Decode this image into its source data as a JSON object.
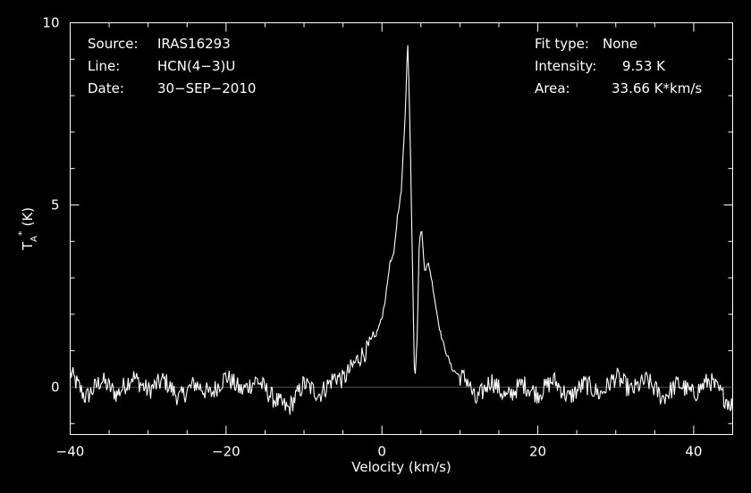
{
  "chart_data": {
    "type": "line",
    "xlabel": "Velocity (km/s)",
    "ylabel": "T",
    "ylabel_sub": "A",
    "ylabel_sup": "*",
    "ylabel_unit": "(K)",
    "xlim": [
      -40,
      45
    ],
    "ylim": [
      -1.3,
      10
    ],
    "x_ticks": [
      -40,
      -20,
      0,
      20,
      40
    ],
    "x_tick_labels": [
      "−40",
      "−20",
      "0",
      "20",
      "40"
    ],
    "y_ticks": [
      0,
      5,
      10
    ],
    "y_tick_labels": [
      "0",
      "5",
      "10"
    ],
    "colors": {
      "background": "#000000",
      "spectrum": "#ffffff",
      "baseline": "#ff0000",
      "frame": "#ffffff"
    },
    "baseline_value": 0,
    "series": [
      {
        "x": [
          -40,
          -38,
          -36,
          -34,
          -32,
          -30,
          -28,
          -26,
          -24,
          -22,
          -20,
          -18,
          -16,
          -14,
          -12,
          -10,
          -8,
          -6,
          -5,
          -4,
          -3,
          -2,
          -1,
          0,
          0.5,
          1,
          1.5,
          2,
          2.5,
          3,
          3.3,
          3.6,
          3.9,
          4.2,
          4.5,
          4.8,
          5.1,
          5.5,
          6,
          6.5,
          7,
          7.5,
          8,
          8.5,
          9,
          10,
          11,
          12,
          14,
          16,
          18,
          20,
          22,
          24,
          26,
          28,
          30,
          32,
          34,
          36,
          38,
          40,
          42,
          44,
          45
        ],
        "y": [
          0.4,
          -0.3,
          0.2,
          -0.2,
          0.3,
          -0.1,
          0.2,
          -0.3,
          0.1,
          -0.2,
          0.3,
          -0.1,
          0.2,
          -0.3,
          -0.6,
          0.1,
          -0.2,
          0.3,
          0.2,
          0.5,
          0.8,
          1.0,
          1.3,
          1.9,
          2.5,
          3.4,
          3.6,
          4.7,
          5.4,
          7.6,
          9.53,
          7.2,
          3.6,
          0.1,
          1.2,
          4.1,
          4.3,
          3.2,
          3.4,
          2.8,
          2.1,
          1.5,
          1.1,
          0.8,
          0.5,
          0.3,
          0.2,
          -0.4,
          0.2,
          -0.3,
          0.1,
          -0.2,
          0.2,
          -0.3,
          0.1,
          -0.2,
          0.3,
          -0.1,
          0.2,
          -0.3,
          0.1,
          -0.2,
          0.2,
          -0.3,
          -0.5
        ]
      }
    ]
  },
  "header": {
    "source_key": "Source:",
    "source_val": "IRAS16293",
    "line_key": "Line:",
    "line_val": "HCN(4−3)U",
    "date_key": "Date:",
    "date_val": "30−SEP−2010",
    "fit_key": "Fit type:",
    "fit_val": "None",
    "intensity_key": "Intensity:",
    "intensity_val": "9.53 K",
    "area_key": "Area:",
    "area_val": "33.66 K*km/s"
  }
}
